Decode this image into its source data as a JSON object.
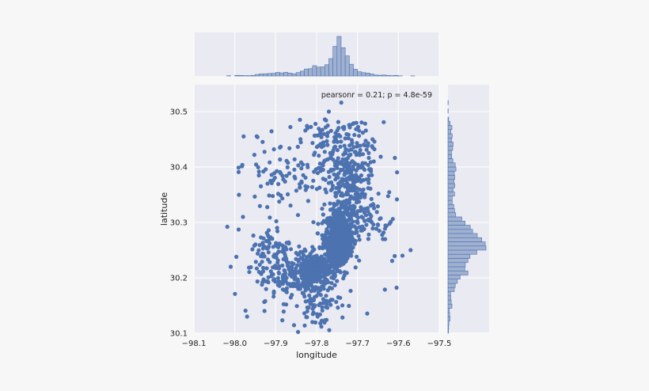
{
  "chart_data": {
    "type": "scatter",
    "subtype": "jointplot",
    "xlabel": "longitude",
    "ylabel": "latitude",
    "xlim": [
      -98.1,
      -97.5
    ],
    "ylim": [
      30.1,
      30.55
    ],
    "xticks": [
      "−98.1",
      "−98.0",
      "−97.9",
      "−97.8",
      "−97.7",
      "−97.6",
      "−97.5"
    ],
    "yticks": [
      "30.1",
      "30.2",
      "30.3",
      "30.4",
      "30.5"
    ],
    "annotation": "pearsonr = 0.21; p = 4.8e-59",
    "point_color": "#4c72b0",
    "hist_fill": "#9fb0d0",
    "hist_edge": "#4c72b0",
    "grid": true,
    "marginal_histograms": [
      "top",
      "right"
    ],
    "sampled_points": [
      {
        "x": -97.76,
        "y": 30.28
      },
      {
        "x": -97.75,
        "y": 30.27
      },
      {
        "x": -97.74,
        "y": 30.29
      },
      {
        "x": -97.77,
        "y": 30.26
      },
      {
        "x": -97.73,
        "y": 30.3
      },
      {
        "x": -97.8,
        "y": 30.24
      },
      {
        "x": -97.82,
        "y": 30.21
      },
      {
        "x": -97.71,
        "y": 30.33
      },
      {
        "x": -97.79,
        "y": 30.46
      },
      {
        "x": -97.7,
        "y": 30.47
      },
      {
        "x": -98.01,
        "y": 30.22
      },
      {
        "x": -97.97,
        "y": 30.13
      },
      {
        "x": -97.59,
        "y": 30.24
      },
      {
        "x": -97.57,
        "y": 30.25
      },
      {
        "x": -97.77,
        "y": 30.5
      },
      {
        "x": -97.89,
        "y": 30.26
      },
      {
        "x": -97.84,
        "y": 30.18
      },
      {
        "x": -97.66,
        "y": 30.41
      },
      {
        "x": -97.98,
        "y": 30.31
      },
      {
        "x": -97.92,
        "y": 30.37
      }
    ]
  }
}
